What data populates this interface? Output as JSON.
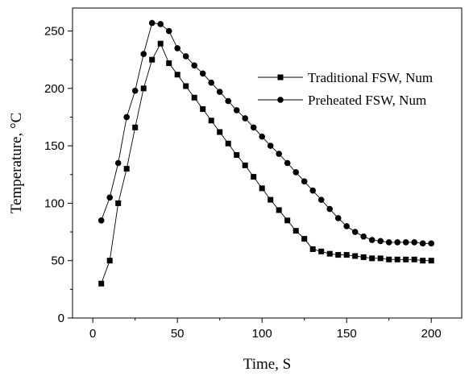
{
  "chart_data": {
    "type": "line",
    "xlabel": "Time, S",
    "ylabel": "Temperature, °C",
    "xlim": [
      -12,
      218
    ],
    "ylim": [
      0,
      270
    ],
    "xticks": [
      0,
      50,
      100,
      150,
      200
    ],
    "yticks": [
      0,
      50,
      100,
      150,
      200,
      250
    ],
    "legend_position": "top-right",
    "series": [
      {
        "name": "Traditional FSW, Num",
        "marker": "square",
        "x": [
          5,
          10,
          15,
          20,
          25,
          30,
          35,
          40,
          45,
          50,
          55,
          60,
          65,
          70,
          75,
          80,
          85,
          90,
          95,
          100,
          105,
          110,
          115,
          120,
          125,
          130,
          135,
          140,
          145,
          150,
          155,
          160,
          165,
          170,
          175,
          180,
          185,
          190,
          195,
          200
        ],
        "values": [
          30,
          50,
          100,
          130,
          166,
          200,
          225,
          239,
          222,
          212,
          202,
          192,
          182,
          172,
          162,
          152,
          142,
          133,
          123,
          113,
          103,
          94,
          85,
          76,
          69,
          60,
          58,
          56,
          55,
          55,
          54,
          53,
          52,
          52,
          51,
          51,
          51,
          51,
          50,
          50
        ]
      },
      {
        "name": "Preheated FSW, Num",
        "marker": "circle",
        "x": [
          5,
          10,
          15,
          20,
          25,
          30,
          35,
          40,
          45,
          50,
          55,
          60,
          65,
          70,
          75,
          80,
          85,
          90,
          95,
          100,
          105,
          110,
          115,
          120,
          125,
          130,
          135,
          140,
          145,
          150,
          155,
          160,
          165,
          170,
          175,
          180,
          185,
          190,
          195,
          200
        ],
        "values": [
          85,
          105,
          135,
          175,
          198,
          230,
          257,
          256,
          250,
          235,
          228,
          220,
          213,
          205,
          197,
          189,
          181,
          174,
          166,
          158,
          150,
          143,
          135,
          127,
          119,
          111,
          103,
          95,
          87,
          80,
          75,
          71,
          68,
          67,
          66,
          66,
          66,
          66,
          65,
          65
        ]
      }
    ]
  }
}
